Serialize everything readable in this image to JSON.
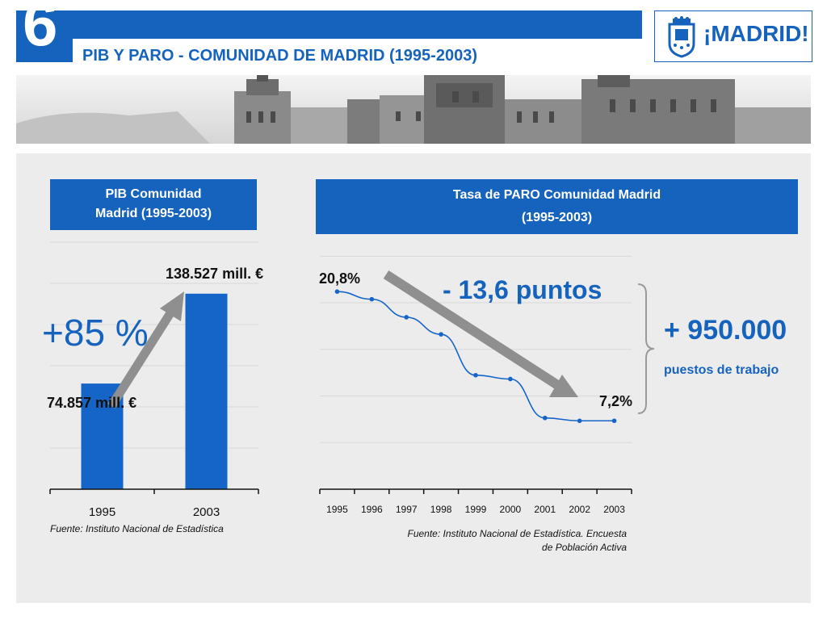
{
  "slide": {
    "number": "6",
    "title": "PIB Y PARO - COMUNIDAD DE MADRID (1995-2003)",
    "logo_text": "¡MADRID!"
  },
  "colors": {
    "brand_blue": "#1663bd",
    "bar_blue": "#1565c8",
    "arrow_gray": "#8f8f8f",
    "panel_gray": "#ececec"
  },
  "pib": {
    "header_line1": "PIB Comunidad",
    "header_line2": "Madrid (1995-2003)",
    "growth_label": "+85 %",
    "label_1995": "74.857 mill. €",
    "label_2003": "138.527 mill. €",
    "source": "Fuente: Instituto Nacional de Estadística"
  },
  "paro": {
    "header_line1": "Tasa de PARO Comunidad Madrid",
    "header_line2": "(1995-2003)",
    "start_label": "20,8%",
    "end_label": "7,2%",
    "drop_label": "- 13,6 puntos",
    "jobs_value": "+ 950.000",
    "jobs_label": "puestos de trabajo",
    "source_line1": "Fuente: Instituto Nacional de Estadística. Encuesta",
    "source_line2": "de Población Activa"
  },
  "chart_data": [
    {
      "type": "bar",
      "title": "PIB Comunidad Madrid (1995-2003)",
      "categories": [
        "1995",
        "2003"
      ],
      "values": [
        74857,
        138527
      ],
      "unit": "mill. €",
      "ylim": [
        0,
        175000
      ],
      "grid": true
    },
    {
      "type": "line",
      "title": "Tasa de PARO Comunidad Madrid (1995-2003)",
      "x": [
        "1995",
        "1996",
        "1997",
        "1998",
        "1999",
        "2000",
        "2001",
        "2002",
        "2003"
      ],
      "values": [
        20.8,
        20.0,
        18.1,
        16.3,
        12.0,
        11.6,
        7.5,
        7.2,
        7.2
      ],
      "unit": "%",
      "ylim": [
        0,
        26
      ],
      "grid": true
    }
  ]
}
